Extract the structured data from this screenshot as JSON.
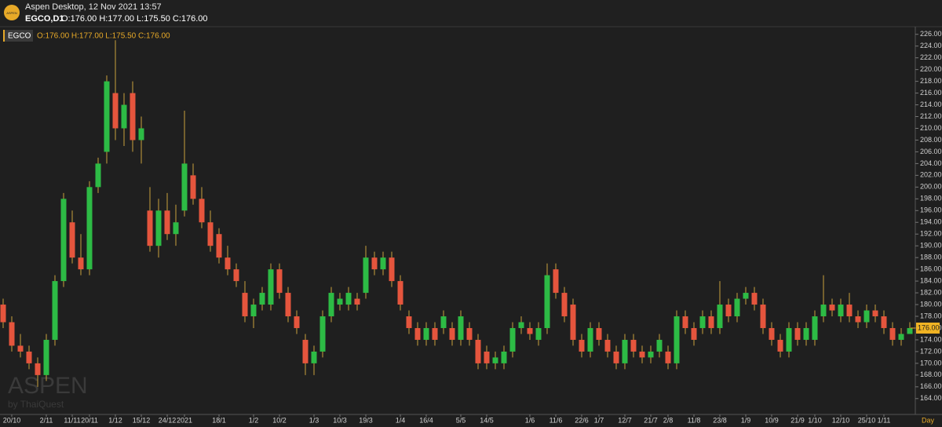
{
  "header": {
    "app": "Aspen Desktop, 12 Nov 2021 13:57",
    "symbol": "EGCO,D1",
    "ohlc": "O:176.00 H:177.00 L:175.50 C:176.00",
    "logo": "ASPEN"
  },
  "chart_data": {
    "type": "candlestick",
    "legend_symbol": "EGCO",
    "legend_ohlc": "O:176.00 H:177.00 L:175.50 C:176.00",
    "watermark": "ASPEN",
    "watermark_sub": "by ThaiQuest",
    "period": "Day",
    "up_color": "#2dbb45",
    "down_color": "#e5553d",
    "wick_color": "#c9a23c",
    "last_price": {
      "value": 176,
      "label": "176.00"
    },
    "ylim": [
      161.3,
      227.3
    ],
    "yticks": [
      {
        "value": 164,
        "label": "164.00"
      },
      {
        "value": 166,
        "label": "166.00"
      },
      {
        "value": 168,
        "label": "168.00"
      },
      {
        "value": 170,
        "label": "170.00"
      },
      {
        "value": 172,
        "label": "172.00"
      },
      {
        "value": 174,
        "label": "174.00"
      },
      {
        "value": 176,
        "label": "176.00"
      },
      {
        "value": 178,
        "label": "178.00"
      },
      {
        "value": 180,
        "label": "180.00"
      },
      {
        "value": 182,
        "label": "182.00"
      },
      {
        "value": 184,
        "label": "184.00"
      },
      {
        "value": 186,
        "label": "186.00"
      },
      {
        "value": 188,
        "label": "188.00"
      },
      {
        "value": 190,
        "label": "190.00"
      },
      {
        "value": 192,
        "label": "192.00"
      },
      {
        "value": 194,
        "label": "194.00"
      },
      {
        "value": 196,
        "label": "196.00"
      },
      {
        "value": 198,
        "label": "198.00"
      },
      {
        "value": 200,
        "label": "200.00"
      },
      {
        "value": 202,
        "label": "202.00"
      },
      {
        "value": 204,
        "label": "204.00"
      },
      {
        "value": 206,
        "label": "206.00"
      },
      {
        "value": 208,
        "label": "208.00"
      },
      {
        "value": 210,
        "label": "210.00"
      },
      {
        "value": 212,
        "label": "212.00"
      },
      {
        "value": 214,
        "label": "214.00"
      },
      {
        "value": 216,
        "label": "216.00"
      },
      {
        "value": 218,
        "label": "218.00"
      },
      {
        "value": 220,
        "label": "220.00"
      },
      {
        "value": 222,
        "label": "222.00"
      },
      {
        "value": 224,
        "label": "224.00"
      },
      {
        "value": 226,
        "label": "226.00"
      }
    ],
    "categories": [
      null,
      "20/10",
      null,
      null,
      null,
      "2/11",
      null,
      null,
      "11/11",
      null,
      "20/11",
      null,
      null,
      "1/12",
      null,
      null,
      "15/12",
      null,
      null,
      "24/12",
      null,
      "2021",
      null,
      null,
      null,
      "18/1",
      null,
      null,
      null,
      "1/2",
      null,
      null,
      "10/2",
      null,
      null,
      null,
      "1/3",
      null,
      null,
      "10/3",
      null,
      null,
      "19/3",
      null,
      null,
      null,
      "1/4",
      null,
      null,
      "16/4",
      null,
      null,
      null,
      "5/5",
      null,
      null,
      "14/5",
      null,
      null,
      null,
      null,
      "1/6",
      null,
      null,
      "11/6",
      null,
      null,
      "22/6",
      null,
      "1/7",
      null,
      null,
      "12/7",
      null,
      null,
      "21/7",
      null,
      "2/8",
      null,
      null,
      "11/8",
      null,
      null,
      "23/8",
      null,
      null,
      "1/9",
      null,
      null,
      "10/9",
      null,
      null,
      "21/9",
      null,
      "1/10",
      null,
      null,
      "12/10",
      null,
      null,
      "25/10",
      null,
      "1/11",
      null,
      null,
      null
    ],
    "open": [
      180,
      177,
      173,
      172,
      170,
      168,
      174,
      184,
      194,
      188,
      186,
      200,
      206,
      216,
      210,
      216,
      208,
      196,
      190,
      196,
      192,
      196,
      202,
      198,
      194,
      192,
      188,
      186,
      182,
      178,
      180,
      180,
      186,
      182,
      178,
      174,
      170,
      172,
      178,
      180,
      180,
      181,
      182,
      188,
      186,
      188,
      184,
      178,
      176,
      174,
      176,
      176,
      176,
      174,
      176,
      174,
      172,
      170,
      170,
      172,
      176,
      176,
      174,
      176,
      186,
      182,
      180,
      174,
      172,
      176,
      174,
      172,
      170,
      174,
      172,
      171,
      172,
      172,
      170,
      178,
      176,
      176,
      178,
      176,
      180,
      178,
      181,
      182,
      180,
      176,
      174,
      172,
      176,
      174,
      174,
      178,
      180,
      178,
      180,
      178,
      177,
      179,
      178,
      176,
      174,
      175
    ],
    "high": [
      181,
      178,
      175,
      173,
      171,
      175,
      185,
      199,
      196,
      192,
      201,
      205,
      219,
      225,
      216,
      218,
      212,
      200,
      198,
      199,
      197,
      213,
      204,
      200,
      196,
      193,
      190,
      187,
      184,
      181,
      183,
      187,
      187,
      183,
      179,
      175,
      173,
      179,
      183,
      182,
      183,
      182,
      190,
      189,
      189,
      189,
      185,
      179,
      177,
      177,
      177,
      179,
      177,
      179,
      177,
      175,
      173,
      172,
      173,
      177,
      178,
      177,
      177,
      187,
      187,
      183,
      181,
      175,
      177,
      177,
      175,
      173,
      175,
      175,
      173,
      173,
      175,
      173,
      179,
      179,
      177,
      179,
      179,
      184,
      181,
      182,
      183,
      183,
      181,
      177,
      175,
      177,
      177,
      177,
      179,
      185,
      181,
      181,
      182,
      179,
      180,
      180,
      179,
      177,
      176,
      177
    ],
    "low": [
      176,
      172,
      171,
      169,
      166,
      167,
      173,
      183,
      187,
      185,
      185,
      199,
      204,
      208,
      207,
      206,
      204,
      189,
      188,
      191,
      190,
      195,
      197,
      193,
      189,
      187,
      185,
      183,
      177,
      176,
      179,
      179,
      181,
      177,
      175,
      168,
      168,
      171,
      177,
      179,
      179,
      179,
      181,
      185,
      185,
      183,
      179,
      175,
      173,
      173,
      173,
      175,
      173,
      173,
      173,
      169,
      169,
      169,
      169,
      171,
      175,
      174,
      173,
      175,
      181,
      177,
      173,
      171,
      171,
      173,
      171,
      169,
      169,
      171,
      170,
      170,
      171,
      169,
      169,
      175,
      173,
      175,
      175,
      175,
      177,
      177,
      180,
      179,
      175,
      173,
      171,
      171,
      173,
      173,
      173,
      177,
      178,
      177,
      177,
      176,
      176,
      177,
      175,
      173,
      173,
      175.5
    ],
    "close": [
      177,
      173,
      172,
      170,
      168,
      174,
      184,
      198,
      188,
      186,
      200,
      204,
      218,
      210,
      214,
      208,
      210,
      190,
      196,
      192,
      194,
      204,
      198,
      194,
      190,
      188,
      186,
      184,
      178,
      180,
      182,
      186,
      182,
      178,
      176,
      170,
      172,
      178,
      182,
      181,
      182,
      180,
      188,
      186,
      188,
      184,
      180,
      176,
      174,
      176,
      174,
      178,
      174,
      178,
      174,
      170,
      170,
      171,
      172,
      176,
      177,
      175,
      176,
      185,
      182,
      178,
      174,
      172,
      176,
      174,
      172,
      170,
      174,
      172,
      171,
      172,
      174,
      170,
      178,
      176,
      174,
      178,
      176,
      180,
      178,
      181,
      182,
      180,
      176,
      174,
      172,
      176,
      174,
      176,
      178,
      180,
      179,
      180,
      178,
      177,
      179,
      178,
      176,
      174,
      175,
      176
    ]
  }
}
